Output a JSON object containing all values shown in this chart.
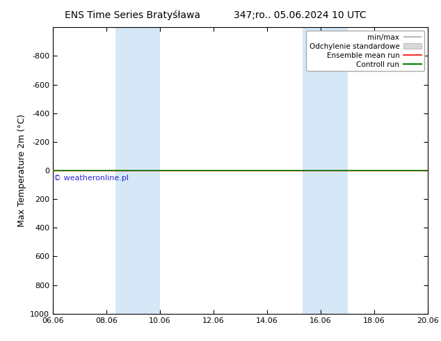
{
  "title_left": "ENS Time Series Bratyśława",
  "title_right": "347;ro.. 05.06.2024 10 UTC",
  "ylabel": "Max Temperature 2m (°C)",
  "watermark": "© weatheronline.pl",
  "ylim_bottom": 1000,
  "ylim_top": -1000,
  "yticks": [
    -800,
    -600,
    -400,
    -200,
    0,
    200,
    400,
    600,
    800,
    1000
  ],
  "xtick_labels": [
    "06.06",
    "08.06",
    "10.06",
    "12.06",
    "14.06",
    "16.06",
    "18.06",
    "20.06"
  ],
  "xtick_positions": [
    0,
    2,
    4,
    6,
    8,
    10,
    12,
    14
  ],
  "shaded_bands": [
    {
      "xmin": 2.333,
      "xmax": 4.0
    },
    {
      "xmin": 9.333,
      "xmax": 11.0
    }
  ],
  "shade_color": "#d6e8f7",
  "ensemble_mean_y": 0,
  "control_run_y": 0,
  "ensemble_mean_color": "#ff0000",
  "control_run_color": "#008000",
  "minmax_color": "#aaaaaa",
  "std_dev_color": "#d8d8d8",
  "background_color": "#ffffff",
  "legend_items": [
    "min/max",
    "Odchylenie standardowe",
    "Ensemble mean run",
    "Controll run"
  ],
  "legend_colors": [
    "#aaaaaa",
    "#d8d8d8",
    "#ff0000",
    "#008000"
  ],
  "title_fontsize": 10,
  "axis_fontsize": 9,
  "tick_fontsize": 8,
  "watermark_color": "#0000cc"
}
